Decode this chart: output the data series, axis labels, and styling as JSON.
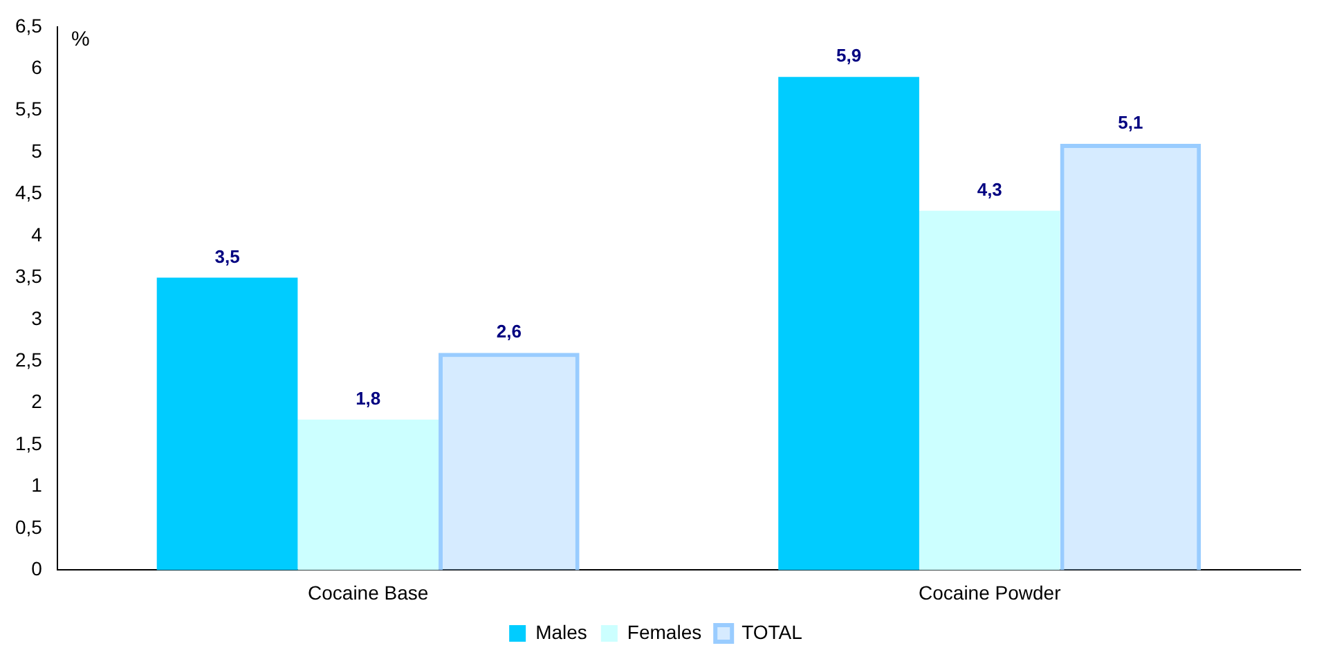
{
  "chart_data": {
    "type": "bar",
    "ylabel": "%",
    "categories": [
      "Cocaine Base",
      "Cocaine Powder"
    ],
    "series": [
      {
        "name": "Males",
        "color": "#00ccff",
        "values": [
          3.5,
          5.9
        ],
        "value_labels": [
          "3,5",
          "5,9"
        ]
      },
      {
        "name": "Females",
        "color": "#ccffff",
        "values": [
          1.8,
          4.3
        ],
        "value_labels": [
          "1,8",
          "4,3"
        ]
      },
      {
        "name": "TOTAL",
        "color": "#99ccff",
        "values": [
          2.6,
          5.1
        ],
        "value_labels": [
          "2,6",
          "5,1"
        ]
      }
    ],
    "ylim": [
      0,
      6.5
    ],
    "yticks": [
      0,
      {
        "value": 0.5,
        "label": "0,5"
      },
      1,
      {
        "value": 1.5,
        "label": "1,5"
      },
      2,
      {
        "value": 2.5,
        "label": "2,5"
      },
      3,
      {
        "value": 3.5,
        "label": "3,5"
      },
      4,
      {
        "value": 4.5,
        "label": "4,5"
      },
      5,
      {
        "value": 5.5,
        "label": "5,5"
      },
      6,
      {
        "value": 6.5,
        "label": "6,5"
      }
    ],
    "grid": false,
    "legend": "bottom"
  }
}
